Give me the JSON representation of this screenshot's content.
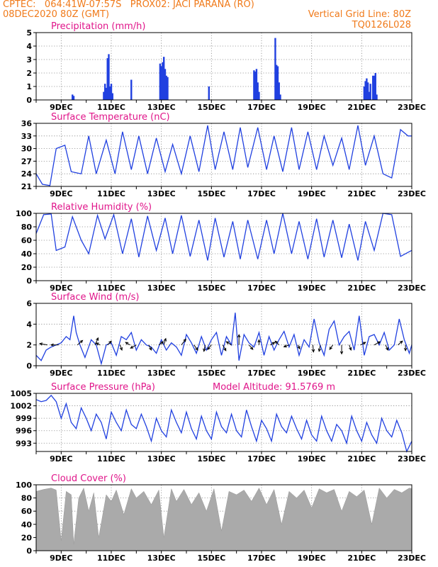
{
  "header": {
    "line1_left": "CPTEC:   064:41W-07:57S   PROX02: JACI PARANA (RO)",
    "line2_left": "08DEC2020 80Z (GMT)",
    "line2_right": "Vertical Grid Line: 80Z",
    "line3_right": "TQ0126L028",
    "color": "#f07a1a"
  },
  "colors": {
    "title": "#e0158a",
    "line": "#2040e0",
    "bar": "#2040e0",
    "cloud": "#aaaaaa",
    "arrow": "#000000"
  },
  "x_axis": {
    "labels": [
      "9DEC",
      "11DEC",
      "13DEC",
      "15DEC",
      "17DEC",
      "19DEC",
      "21DEC",
      "23DEC"
    ],
    "range_days": [
      8.0,
      23.0
    ]
  },
  "chart_data": [
    {
      "id": "precip",
      "type": "bar",
      "title": "Precipitation (mm/h)",
      "ylim": [
        0,
        5
      ],
      "yticks": [
        "0",
        "1",
        "2",
        "3",
        "4",
        "5"
      ],
      "grid": true,
      "x_unit": "day of December 2020",
      "x": [
        9.45,
        9.5,
        10.7,
        10.75,
        10.8,
        10.85,
        10.9,
        10.95,
        11.0,
        11.05,
        11.8,
        12.95,
        13.0,
        13.05,
        13.1,
        13.15,
        13.2,
        13.25,
        14.9,
        16.7,
        16.75,
        16.8,
        16.85,
        16.9,
        17.55,
        17.6,
        17.65,
        17.7,
        17.75,
        21.1,
        21.15,
        21.2,
        21.25,
        21.3,
        21.35,
        21.45,
        21.5,
        21.55,
        21.6
      ],
      "values": [
        0.4,
        0.3,
        0.6,
        1.2,
        0.9,
        3.1,
        3.4,
        1.0,
        1.2,
        0.5,
        1.5,
        2.7,
        2.5,
        2.8,
        3.2,
        2.3,
        1.8,
        1.7,
        1.0,
        2.2,
        2.1,
        2.3,
        1.3,
        0.6,
        4.6,
        2.6,
        2.5,
        1.3,
        0.4,
        1.0,
        1.4,
        1.6,
        1.3,
        0.6,
        1.2,
        1.8,
        1.8,
        2.0,
        0.4
      ]
    },
    {
      "id": "temp",
      "type": "line",
      "title": "Surface Temperature (nC)",
      "ylim": [
        21,
        36
      ],
      "yticks": [
        "21",
        "24",
        "27",
        "30",
        "33",
        "36"
      ],
      "grid": true,
      "x": [
        8.0,
        8.25,
        8.55,
        8.8,
        9.15,
        9.4,
        9.8,
        10.1,
        10.4,
        10.8,
        11.15,
        11.45,
        11.8,
        12.1,
        12.45,
        12.8,
        13.15,
        13.45,
        13.8,
        14.15,
        14.5,
        14.85,
        15.15,
        15.5,
        15.85,
        16.15,
        16.45,
        16.85,
        17.2,
        17.5,
        17.85,
        18.2,
        18.5,
        18.85,
        19.2,
        19.5,
        19.85,
        20.2,
        20.5,
        20.85,
        21.15,
        21.5,
        21.85,
        22.2,
        22.55,
        22.85,
        23.0
      ],
      "values": [
        24.0,
        21.5,
        21.2,
        30.0,
        30.8,
        24.5,
        24.0,
        33.0,
        24.0,
        32.0,
        24.0,
        34.0,
        25.0,
        33.0,
        24.0,
        32.5,
        24.5,
        31.0,
        24.0,
        33.0,
        24.5,
        35.5,
        25.0,
        34.0,
        25.0,
        35.0,
        25.5,
        35.0,
        25.0,
        33.0,
        24.5,
        35.0,
        25.0,
        34.0,
        25.0,
        33.0,
        26.0,
        32.5,
        25.0,
        35.5,
        26.0,
        33.0,
        24.0,
        23.0,
        34.5,
        33.0,
        33.0
      ]
    },
    {
      "id": "rh",
      "type": "line",
      "title": "Relative Humidity (%)",
      "ylim": [
        0,
        100
      ],
      "yticks": [
        "0",
        "20",
        "40",
        "60",
        "80",
        "100"
      ],
      "grid": true,
      "x": [
        8.0,
        8.3,
        8.6,
        8.8,
        9.15,
        9.45,
        9.8,
        10.1,
        10.45,
        10.75,
        11.1,
        11.45,
        11.8,
        12.1,
        12.45,
        12.8,
        13.15,
        13.45,
        13.8,
        14.15,
        14.5,
        14.85,
        15.15,
        15.5,
        15.85,
        16.15,
        16.45,
        16.85,
        17.2,
        17.5,
        17.85,
        18.2,
        18.5,
        18.85,
        19.2,
        19.5,
        19.85,
        20.2,
        20.5,
        20.85,
        21.15,
        21.5,
        21.85,
        22.2,
        22.55,
        22.85,
        23.0
      ],
      "values": [
        70.0,
        98.0,
        99.0,
        45.0,
        50.0,
        95.0,
        60.0,
        40.0,
        97.0,
        62.0,
        98.0,
        40.0,
        92.0,
        35.0,
        96.0,
        45.0,
        93.0,
        40.0,
        97.0,
        36.0,
        90.0,
        30.0,
        93.0,
        35.0,
        88.0,
        32.0,
        90.0,
        32.0,
        90.0,
        40.0,
        100.0,
        40.0,
        88.0,
        32.0,
        92.0,
        35.0,
        90.0,
        34.0,
        84.0,
        30.0,
        88.0,
        45.0,
        100.0,
        98.0,
        36.0,
        42.0,
        45.0
      ]
    },
    {
      "id": "wind",
      "type": "line",
      "title": "Surface Wind (m/s)",
      "ylim": [
        0,
        6
      ],
      "yticks": [
        "0",
        "2",
        "4",
        "6"
      ],
      "grid": true,
      "x": [
        8.0,
        8.2,
        8.4,
        8.6,
        8.8,
        9.0,
        9.2,
        9.35,
        9.5,
        9.6,
        9.75,
        9.95,
        10.2,
        10.4,
        10.6,
        10.8,
        11.0,
        11.2,
        11.4,
        11.6,
        11.8,
        12.0,
        12.2,
        12.4,
        12.6,
        12.8,
        13.0,
        13.2,
        13.4,
        13.6,
        13.8,
        14.0,
        14.2,
        14.4,
        14.6,
        14.8,
        15.0,
        15.2,
        15.4,
        15.6,
        15.8,
        15.95,
        16.1,
        16.3,
        16.5,
        16.7,
        16.9,
        17.1,
        17.3,
        17.5,
        17.7,
        17.9,
        18.1,
        18.3,
        18.5,
        18.7,
        18.9,
        19.1,
        19.3,
        19.5,
        19.7,
        19.9,
        20.1,
        20.3,
        20.5,
        20.7,
        20.9,
        21.1,
        21.3,
        21.5,
        21.7,
        21.9,
        22.1,
        22.3,
        22.5,
        22.7,
        22.9,
        23.0
      ],
      "values": [
        1.0,
        0.5,
        1.5,
        1.8,
        2.0,
        2.2,
        2.8,
        2.5,
        4.8,
        3.2,
        2.0,
        0.8,
        2.5,
        2.0,
        0.2,
        2.0,
        2.2,
        1.0,
        2.8,
        2.5,
        3.2,
        1.5,
        2.5,
        2.0,
        1.8,
        1.2,
        2.5,
        1.5,
        2.2,
        1.8,
        1.0,
        3.0,
        2.2,
        1.2,
        2.8,
        1.5,
        2.5,
        3.2,
        1.0,
        2.8,
        2.0,
        5.1,
        0.5,
        3.0,
        2.2,
        1.8,
        3.2,
        1.0,
        2.8,
        1.5,
        2.5,
        3.3,
        1.8,
        3.0,
        1.0,
        2.5,
        1.8,
        4.5,
        2.2,
        1.0,
        3.5,
        4.3,
        2.0,
        2.8,
        3.3,
        1.5,
        4.8,
        1.0,
        2.8,
        3.0,
        2.0,
        3.2,
        1.5,
        2.0,
        4.5,
        2.5,
        1.2,
        2.0
      ],
      "vectors": [
        {
          "x": 8.45,
          "u": -1.2,
          "v": 0.2
        },
        {
          "x": 8.9,
          "u": -1.2,
          "v": 0.0
        },
        {
          "x": 9.65,
          "u": 0.8,
          "v": 0.7
        },
        {
          "x": 10.35,
          "u": 0.5,
          "v": 1.1
        },
        {
          "x": 10.55,
          "u": -0.6,
          "v": 0.3
        },
        {
          "x": 10.85,
          "u": 0.6,
          "v": 0.6
        },
        {
          "x": 11.35,
          "u": 0.3,
          "v": -0.8
        },
        {
          "x": 11.75,
          "u": -0.7,
          "v": 0.4
        },
        {
          "x": 12.0,
          "u": -0.9,
          "v": -0.5
        },
        {
          "x": 12.5,
          "u": 0.4,
          "v": -0.8
        },
        {
          "x": 12.9,
          "u": 0.7,
          "v": 0.5
        },
        {
          "x": 13.1,
          "u": 0.3,
          "v": 1.0
        },
        {
          "x": 13.8,
          "u": 0.7,
          "v": 0.9
        },
        {
          "x": 14.3,
          "u": 0.6,
          "v": -0.8
        },
        {
          "x": 14.75,
          "u": -0.2,
          "v": -1.0
        },
        {
          "x": 15.0,
          "u": -0.6,
          "v": -0.7
        },
        {
          "x": 15.45,
          "u": 0.5,
          "v": -0.9
        },
        {
          "x": 15.8,
          "u": -0.8,
          "v": 0.5
        },
        {
          "x": 16.1,
          "u": 0.0,
          "v": 1.6
        },
        {
          "x": 16.5,
          "u": 0.6,
          "v": -0.7
        },
        {
          "x": 16.9,
          "u": 0.0,
          "v": 0.8
        },
        {
          "x": 17.35,
          "u": 0.7,
          "v": 0.4
        },
        {
          "x": 17.7,
          "u": -0.6,
          "v": 0.6
        },
        {
          "x": 18.1,
          "u": -0.8,
          "v": -0.3
        },
        {
          "x": 18.45,
          "u": 0.3,
          "v": -0.6
        },
        {
          "x": 19.05,
          "u": 0.1,
          "v": -1.1
        },
        {
          "x": 19.35,
          "u": -0.2,
          "v": -1.0
        },
        {
          "x": 19.85,
          "u": -0.5,
          "v": -0.7
        },
        {
          "x": 20.2,
          "u": 0.0,
          "v": -1.4
        },
        {
          "x": 20.5,
          "u": 0.3,
          "v": -0.8
        },
        {
          "x": 20.95,
          "u": 0.8,
          "v": 0.4
        },
        {
          "x": 21.5,
          "u": 0.9,
          "v": 0.5
        },
        {
          "x": 21.95,
          "u": 0.4,
          "v": -0.8
        },
        {
          "x": 22.45,
          "u": 0.7,
          "v": 0.6
        },
        {
          "x": 22.75,
          "u": 0.0,
          "v": -0.9
        }
      ]
    },
    {
      "id": "pressure",
      "type": "line",
      "title": "Surface Pressure (hPa)",
      "annotation": "Model Altitude: 91.5769 m",
      "ylim": [
        991,
        1005
      ],
      "yticks": [
        "993",
        "996",
        "999",
        "1002",
        "1005"
      ],
      "grid": true,
      "x": [
        8.0,
        8.2,
        8.4,
        8.6,
        8.8,
        9.0,
        9.2,
        9.4,
        9.6,
        9.8,
        10.0,
        10.2,
        10.4,
        10.6,
        10.8,
        11.0,
        11.2,
        11.4,
        11.6,
        11.8,
        12.0,
        12.2,
        12.4,
        12.6,
        12.8,
        13.0,
        13.2,
        13.4,
        13.6,
        13.8,
        14.0,
        14.2,
        14.4,
        14.6,
        14.8,
        15.0,
        15.2,
        15.4,
        15.6,
        15.8,
        16.0,
        16.2,
        16.4,
        16.6,
        16.8,
        17.0,
        17.2,
        17.4,
        17.6,
        17.8,
        18.0,
        18.2,
        18.4,
        18.6,
        18.8,
        19.0,
        19.2,
        19.4,
        19.6,
        19.8,
        20.0,
        20.2,
        20.4,
        20.6,
        20.8,
        21.0,
        21.2,
        21.4,
        21.6,
        21.8,
        22.0,
        22.2,
        22.4,
        22.6,
        22.8,
        23.0
      ],
      "values": [
        1003.5,
        1003.0,
        1003.3,
        1004.5,
        1003.0,
        999.0,
        1002.5,
        998.0,
        996.5,
        1001.5,
        999.0,
        996.0,
        1000.0,
        998.0,
        994.0,
        1000.5,
        998.0,
        996.0,
        1001.0,
        997.5,
        996.5,
        1000.0,
        997.0,
        993.5,
        999.0,
        996.0,
        994.5,
        1001.0,
        998.0,
        995.5,
        1000.5,
        996.5,
        994.0,
        999.5,
        996.0,
        994.0,
        1000.5,
        997.0,
        995.5,
        1000.0,
        996.0,
        994.5,
        1001.0,
        997.0,
        993.5,
        998.5,
        996.5,
        993.5,
        1000.0,
        997.0,
        995.5,
        999.5,
        996.5,
        994.0,
        998.5,
        995.0,
        993.5,
        999.5,
        996.0,
        993.5,
        997.5,
        996.0,
        993.0,
        999.5,
        996.0,
        993.5,
        998.0,
        995.0,
        993.0,
        999.0,
        996.0,
        994.5,
        998.5,
        995.5,
        991.0,
        993.5
      ]
    },
    {
      "id": "cloud",
      "type": "area",
      "title": "Cloud Cover (%)",
      "ylim": [
        0,
        100
      ],
      "yticks": [
        "0",
        "20",
        "40",
        "60",
        "80",
        "100"
      ],
      "grid": true,
      "x": [
        8.0,
        8.3,
        8.6,
        8.8,
        9.0,
        9.2,
        9.4,
        9.5,
        9.7,
        9.9,
        10.1,
        10.3,
        10.5,
        10.8,
        11.0,
        11.2,
        11.5,
        11.8,
        12.0,
        12.3,
        12.6,
        12.9,
        13.1,
        13.4,
        13.6,
        13.9,
        14.2,
        14.5,
        14.8,
        15.1,
        15.4,
        15.7,
        16.0,
        16.3,
        16.6,
        16.9,
        17.2,
        17.5,
        17.8,
        18.1,
        18.4,
        18.7,
        19.0,
        19.3,
        19.6,
        19.9,
        20.2,
        20.5,
        20.8,
        21.1,
        21.4,
        21.7,
        22.0,
        22.3,
        22.6,
        22.9,
        23.0
      ],
      "values": [
        90.0,
        93.0,
        95.0,
        92.0,
        15.0,
        90.0,
        85.0,
        10.0,
        80.0,
        95.0,
        60.0,
        88.0,
        20.0,
        85.0,
        75.0,
        92.0,
        55.0,
        94.0,
        80.0,
        90.0,
        70.0,
        92.0,
        20.0,
        94.0,
        75.0,
        93.0,
        70.0,
        88.0,
        60.0,
        94.0,
        30.0,
        90.0,
        85.0,
        92.0,
        75.0,
        95.0,
        70.0,
        93.0,
        40.0,
        90.0,
        80.0,
        92.0,
        65.0,
        94.0,
        88.0,
        93.0,
        60.0,
        90.0,
        82.0,
        92.0,
        40.0,
        95.0,
        80.0,
        93.0,
        88.0,
        95.0,
        94.0
      ]
    }
  ]
}
